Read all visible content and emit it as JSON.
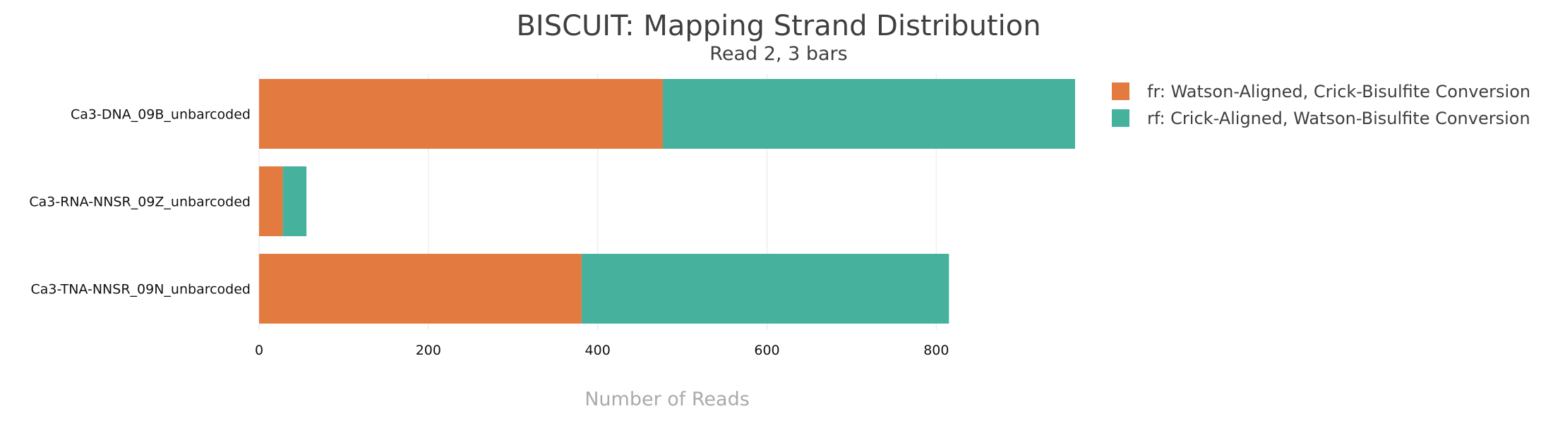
{
  "chart_data": {
    "type": "bar",
    "orientation": "horizontal",
    "stacked": true,
    "title": "BISCUIT: Mapping Strand Distribution",
    "subtitle": "Read 2, 3 bars",
    "xlabel": "Number of Reads",
    "ylabel": "",
    "categories": [
      "Ca3-DNA_09B_unbarcoded",
      "Ca3-RNA-NNSR_09Z_unbarcoded",
      "Ca3-TNA-NNSR_09N_unbarcoded"
    ],
    "series": [
      {
        "name": "fr: Watson-Aligned, Crick-Bisulfite Conversion",
        "color": "#e37b40",
        "values": [
          477,
          28,
          381
        ]
      },
      {
        "name": "rf: Crick-Aligned, Watson-Bisulfite Conversion",
        "color": "#46b29d",
        "values": [
          487,
          28,
          434
        ]
      }
    ],
    "xlim": [
      0,
      964
    ],
    "xticks": [
      "0",
      "200",
      "400",
      "600",
      "800"
    ],
    "xtick_values": [
      0,
      200,
      400,
      600,
      800
    ],
    "grid": "vertical",
    "legend_position": "right"
  }
}
